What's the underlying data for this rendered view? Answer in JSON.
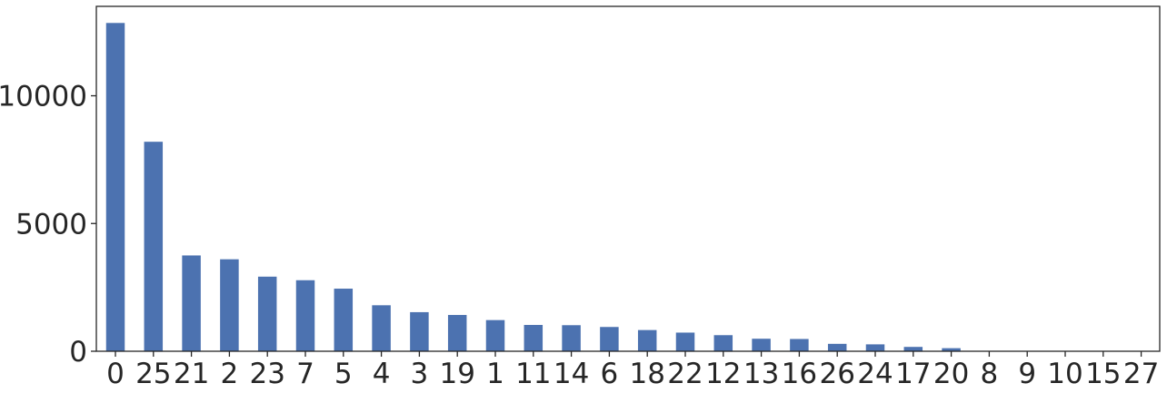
{
  "chart_data": {
    "type": "bar",
    "categories": [
      "0",
      "25",
      "21",
      "2",
      "23",
      "7",
      "5",
      "4",
      "3",
      "19",
      "1",
      "11",
      "14",
      "6",
      "18",
      "22",
      "12",
      "13",
      "16",
      "26",
      "24",
      "17",
      "20",
      "8",
      "9",
      "10",
      "15",
      "27"
    ],
    "values": [
      12850,
      8200,
      3750,
      3600,
      2920,
      2780,
      2450,
      1800,
      1530,
      1420,
      1220,
      1030,
      1020,
      950,
      830,
      730,
      630,
      490,
      480,
      290,
      270,
      170,
      120,
      0,
      0,
      0,
      0,
      0
    ],
    "yticks": [
      0,
      5000,
      10000
    ],
    "ylim": [
      0,
      13500
    ],
    "title": "",
    "xlabel": "",
    "ylabel": "",
    "grid": false,
    "colors": {
      "bar": "#4c72b0",
      "axis": "#262626",
      "background": "#ffffff"
    }
  }
}
